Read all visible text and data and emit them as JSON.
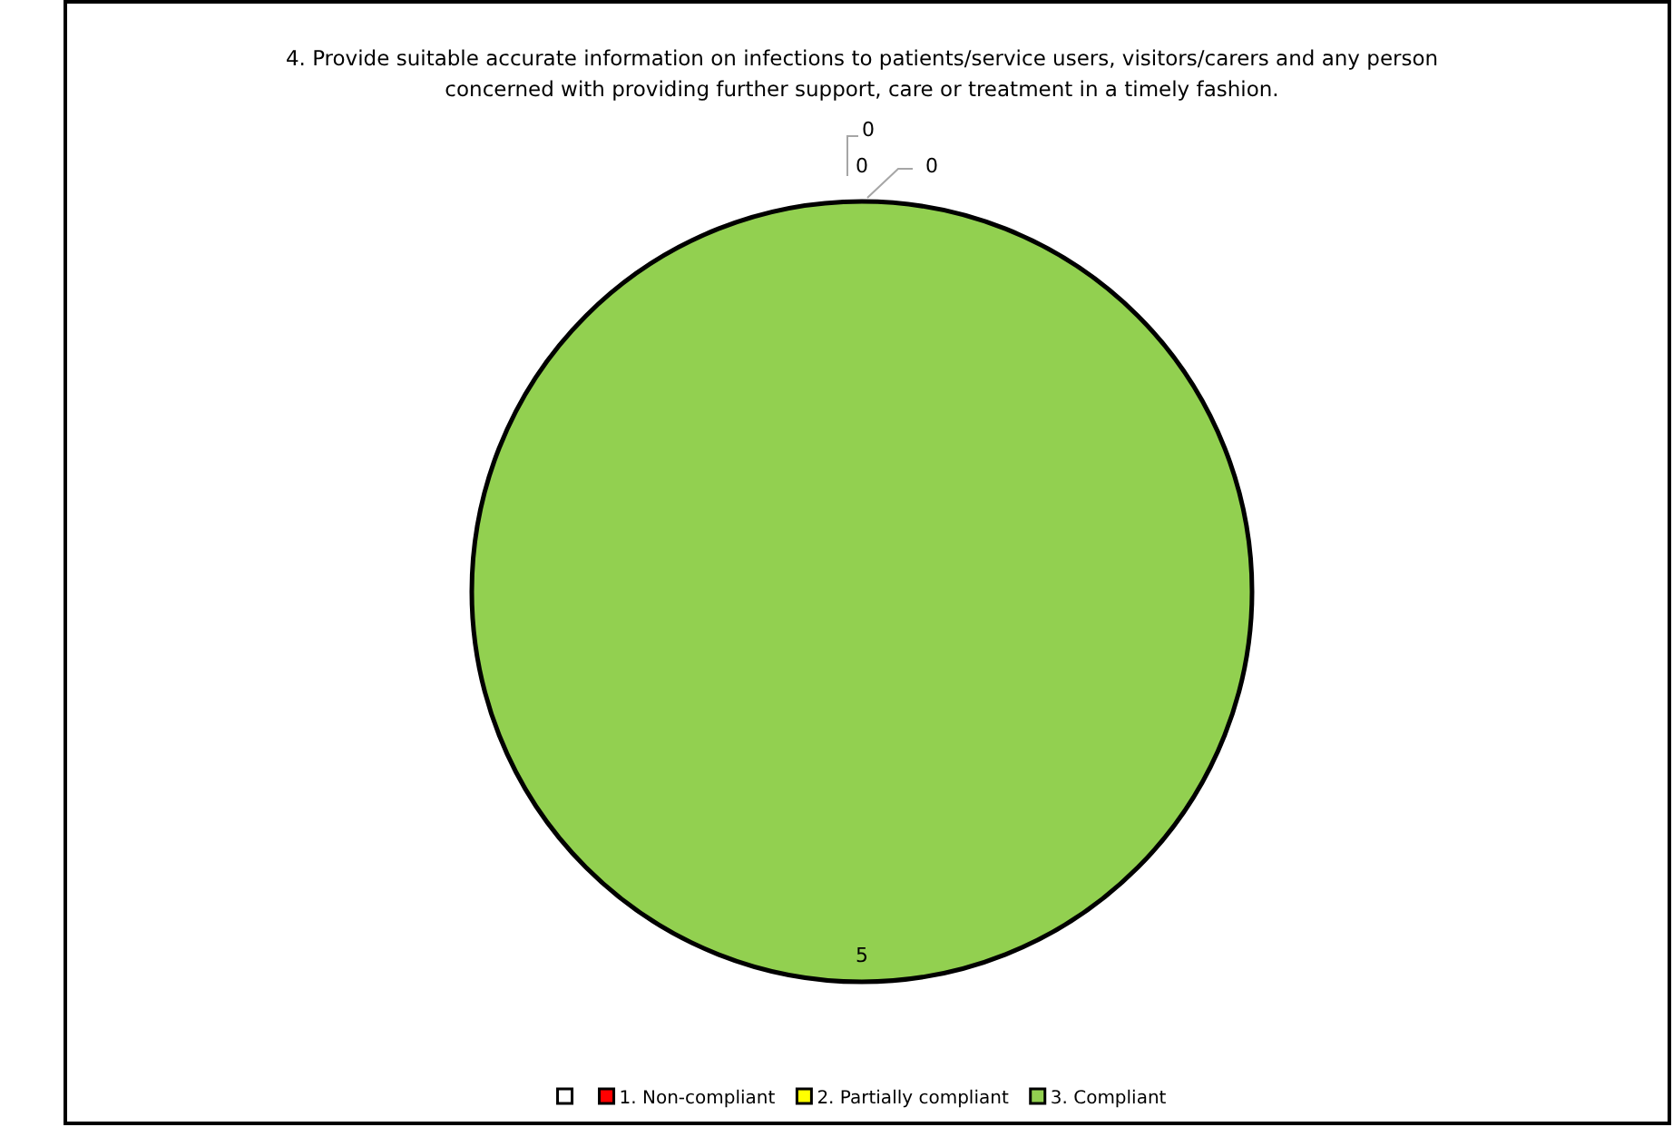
{
  "chart_data": {
    "type": "pie",
    "title": "4. Provide suitable accurate information on infections to patients/service users, visitors/carers and any person concerned with providing further support, care or treatment  in a timely fashion.",
    "categories": [
      null,
      "1. Non-compliant",
      "2. Partially compliant",
      "3. Compliant"
    ],
    "values": [
      0,
      0,
      0,
      5
    ],
    "value_labels": [
      "0",
      "0",
      "0",
      "5"
    ],
    "colors": [
      "#ffffff",
      "#ff0000",
      "#ffff00",
      "#92d050"
    ],
    "legend": "bottom"
  }
}
